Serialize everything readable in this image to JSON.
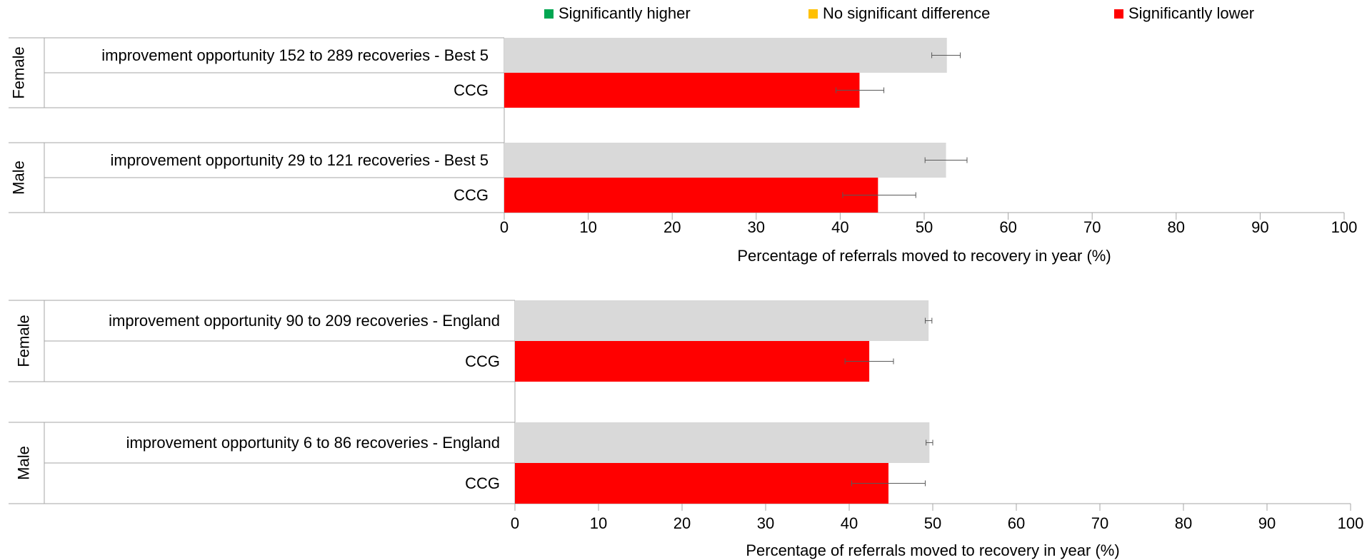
{
  "legend": {
    "items": [
      {
        "label": "Significantly higher",
        "color": "#00a651"
      },
      {
        "label": "No significant difference",
        "color": "#ffc000"
      },
      {
        "label": "Significantly lower",
        "color": "#ff0000"
      }
    ]
  },
  "colors": {
    "benchmark_bar": "#d9d9d9",
    "ccg_lower": "#ff0000",
    "axis": "#a6a6a6",
    "error_bar": "#595959"
  },
  "chart_data": [
    {
      "type": "bar",
      "orientation": "horizontal",
      "xlabel": "Percentage of referrals moved to recovery in year (%)",
      "xlim": [
        0,
        100
      ],
      "xticks": [
        "0",
        "10",
        "20",
        "30",
        "40",
        "50",
        "60",
        "70",
        "80",
        "90",
        "100"
      ],
      "groups": [
        {
          "name": "Female",
          "bars": [
            {
              "label": "improvement opportunity 152 to 289 recoveries - Best 5",
              "value": 52.7,
              "error_low": 50.9,
              "error_high": 54.3,
              "color": "#d9d9d9"
            },
            {
              "label": "CCG",
              "value": 42.3,
              "error_low": 39.5,
              "error_high": 45.2,
              "color": "#ff0000"
            }
          ]
        },
        {
          "name": "Male",
          "bars": [
            {
              "label": "improvement opportunity 29 to 121 recoveries - Best 5",
              "value": 52.6,
              "error_low": 50.1,
              "error_high": 55.1,
              "color": "#d9d9d9"
            },
            {
              "label": "CCG",
              "value": 44.5,
              "error_low": 40.3,
              "error_high": 49.0,
              "color": "#ff0000"
            }
          ]
        }
      ]
    },
    {
      "type": "bar",
      "orientation": "horizontal",
      "xlabel": "Percentage of referrals moved  to recovery in year (%)",
      "xlim": [
        0,
        100
      ],
      "xticks": [
        "0",
        "10",
        "20",
        "30",
        "40",
        "50",
        "60",
        "70",
        "80",
        "90",
        "100"
      ],
      "groups": [
        {
          "name": "Female",
          "bars": [
            {
              "label": "improvement opportunity 90 to 209 recoveries - England",
              "value": 49.5,
              "error_low": 49.1,
              "error_high": 49.9,
              "color": "#d9d9d9"
            },
            {
              "label": "CCG",
              "value": 42.4,
              "error_low": 39.5,
              "error_high": 45.3,
              "color": "#ff0000"
            }
          ]
        },
        {
          "name": "Male",
          "bars": [
            {
              "label": "improvement opportunity 6 to 86 recoveries - England",
              "value": 49.6,
              "error_low": 49.2,
              "error_high": 50.0,
              "color": "#d9d9d9"
            },
            {
              "label": "CCG",
              "value": 44.7,
              "error_low": 40.3,
              "error_high": 49.1,
              "color": "#ff0000"
            }
          ]
        }
      ]
    }
  ]
}
